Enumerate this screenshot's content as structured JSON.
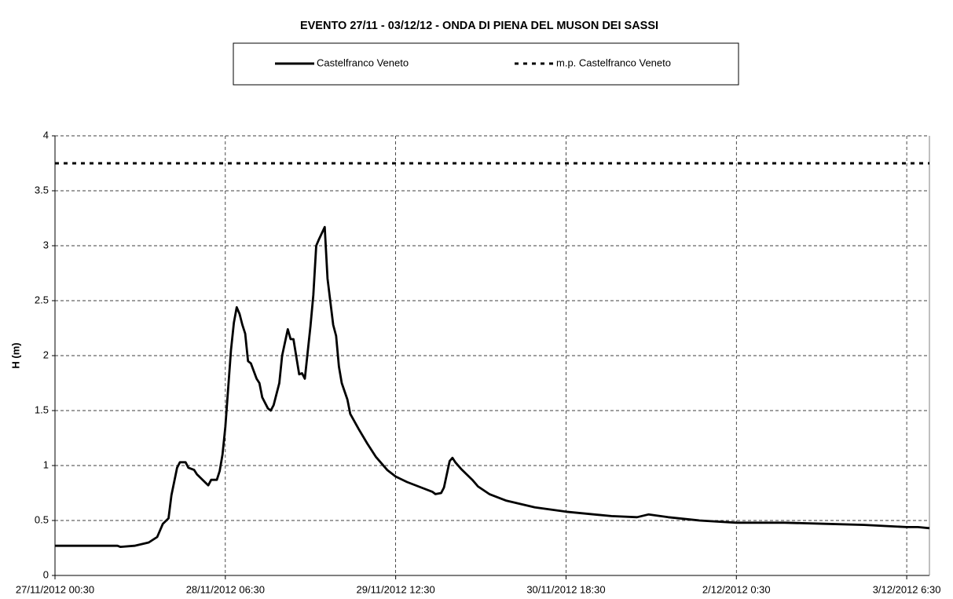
{
  "chart_data": {
    "type": "line",
    "title": "EVENTO 27/11 - 03/12/12 - ONDA DI PIENA DEL MUSON DEI SASSI",
    "y_label": "H (m)",
    "xlim": [
      "27/11/2012 00:30",
      "3/12/2012 10:30"
    ],
    "xticks": [
      "27/11/2012 00:30",
      "28/11/2012 06:30",
      "29/11/2012 12:30",
      "30/11/2012 18:30",
      "2/12/2012 0:30",
      "3/12/2012 6:30"
    ],
    "ylim": [
      0,
      4
    ],
    "yticks": [
      0,
      0.5,
      1,
      1.5,
      2,
      2.5,
      3,
      3.5,
      4
    ],
    "grid": true,
    "series": [
      {
        "name": "Castelfranco Veneto",
        "color": "#000000",
        "style": "solid",
        "x": [
          "27/11/2012 00:30",
          "27/11/2012 11:30",
          "27/11/2012 12:00",
          "27/11/2012 14:30",
          "27/11/2012 17:00",
          "27/11/2012 18:30",
          "27/11/2012 19:30",
          "27/11/2012 20:30",
          "27/11/2012 21:00",
          "27/11/2012 22:00",
          "27/11/2012 22:30",
          "27/11/2012 23:30",
          "28/11/2012 00:00",
          "28/11/2012 01:00",
          "28/11/2012 01:30",
          "28/11/2012 02:30",
          "28/11/2012 03:30",
          "28/11/2012 04:00",
          "28/11/2012 05:00",
          "28/11/2012 05:30",
          "28/11/2012 06:00",
          "28/11/2012 06:30",
          "28/11/2012 07:30",
          "28/11/2012 08:00",
          "28/11/2012 08:30",
          "28/11/2012 09:00",
          "28/11/2012 09:30",
          "28/11/2012 10:00",
          "28/11/2012 10:30",
          "28/11/2012 11:00",
          "28/11/2012 12:00",
          "28/11/2012 12:30",
          "28/11/2012 13:00",
          "28/11/2012 14:00",
          "28/11/2012 14:30",
          "28/11/2012 15:00",
          "28/11/2012 16:00",
          "28/11/2012 16:30",
          "28/11/2012 17:30",
          "28/11/2012 18:00",
          "28/11/2012 18:30",
          "28/11/2012 19:30",
          "28/11/2012 20:00",
          "28/11/2012 20:30",
          "28/11/2012 21:30",
          "28/11/2012 22:00",
          "28/11/2012 22:30",
          "28/11/2012 23:00",
          "29/11/2012 00:00",
          "29/11/2012 00:30",
          "29/11/2012 01:30",
          "29/11/2012 02:00",
          "29/11/2012 02:30",
          "29/11/2012 03:00",
          "29/11/2012 04:00",
          "29/11/2012 04:30",
          "29/11/2012 06:00",
          "29/11/2012 07:30",
          "29/11/2012 09:00",
          "29/11/2012 11:00",
          "29/11/2012 12:30",
          "29/11/2012 14:30",
          "29/11/2012 17:00",
          "29/11/2012 19:00",
          "29/11/2012 19:30",
          "29/11/2012 20:30",
          "29/11/2012 21:00",
          "29/11/2012 22:00",
          "29/11/2012 22:30",
          "29/11/2012 23:00",
          "30/11/2012 00:00",
          "30/11/2012 01:00",
          "30/11/2012 02:00",
          "30/11/2012 03:00",
          "30/11/2012 05:00",
          "30/11/2012 08:00",
          "30/11/2012 13:00",
          "30/11/2012 18:30",
          "1/12/2012 02:30",
          "1/12/2012 07:00",
          "1/12/2012 09:00",
          "1/12/2012 12:30",
          "1/12/2012 18:00",
          "2/12/2012 00:30",
          "2/12/2012 09:00",
          "2/12/2012 16:00",
          "2/12/2012 23:00",
          "3/12/2012 06:30",
          "3/12/2012 08:30",
          "3/12/2012 10:30"
        ],
        "values": [
          0.27,
          0.27,
          0.26,
          0.27,
          0.3,
          0.35,
          0.47,
          0.52,
          0.73,
          0.98,
          1.03,
          1.03,
          0.98,
          0.96,
          0.92,
          0.87,
          0.82,
          0.87,
          0.87,
          0.95,
          1.1,
          1.35,
          2.05,
          2.3,
          2.44,
          2.38,
          2.28,
          2.2,
          1.95,
          1.93,
          1.79,
          1.75,
          1.62,
          1.52,
          1.5,
          1.55,
          1.75,
          2.0,
          2.24,
          2.15,
          2.15,
          1.83,
          1.84,
          1.79,
          2.27,
          2.55,
          3.0,
          3.06,
          3.17,
          2.7,
          2.28,
          2.18,
          1.9,
          1.75,
          1.6,
          1.47,
          1.33,
          1.2,
          1.08,
          0.96,
          0.9,
          0.85,
          0.8,
          0.76,
          0.74,
          0.75,
          0.8,
          1.04,
          1.07,
          1.03,
          0.97,
          0.92,
          0.87,
          0.81,
          0.74,
          0.68,
          0.62,
          0.58,
          0.54,
          0.53,
          0.555,
          0.53,
          0.5,
          0.48,
          0.48,
          0.47,
          0.46,
          0.44,
          0.44,
          0.43
        ]
      },
      {
        "name": "m.p. Castelfranco Veneto",
        "color": "#000000",
        "style": "dotted",
        "x": [
          "27/11/2012 00:30",
          "3/12/2012 10:30"
        ],
        "values": [
          3.75,
          3.75
        ]
      }
    ]
  }
}
